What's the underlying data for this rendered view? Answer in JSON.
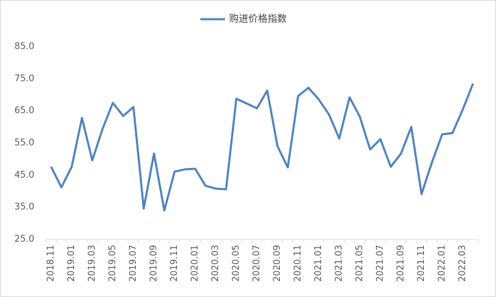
{
  "chart_data": {
    "type": "line",
    "categories": [
      "2018.11",
      null,
      "2019.01",
      null,
      "2019.03",
      null,
      "2019.05",
      null,
      "2019.07",
      null,
      "2019.09",
      null,
      "2019.11",
      null,
      "2020.01",
      null,
      "2020.03",
      null,
      "2020.05",
      null,
      "2020.07",
      null,
      "2020.09",
      null,
      "2020.11",
      null,
      "2021.01",
      null,
      "2021.03",
      null,
      "2021.05",
      null,
      "2021.07",
      null,
      "2021.09",
      null,
      "2021.11",
      null,
      "2022.01",
      null,
      "2022.03",
      null
    ],
    "series": [
      {
        "name": "购进价格指数",
        "color": "#4f81bd",
        "values": [
          47.6,
          41.2,
          47.6,
          62.8,
          49.6,
          59.4,
          67.5,
          63.4,
          66.2,
          34.6,
          51.7,
          34.0,
          46.1,
          46.8,
          47.0,
          41.7,
          40.8,
          40.6,
          68.8,
          67.3,
          65.8,
          71.3,
          54.0,
          47.4,
          69.6,
          72.2,
          68.6,
          63.9,
          56.4,
          69.2,
          63.2,
          53.0,
          56.2,
          47.6,
          51.7,
          60.0,
          39.1,
          48.9,
          57.7,
          58.1,
          65.4,
          73.5
        ]
      }
    ],
    "ylim": [
      25,
      85
    ],
    "yticks": [
      {
        "value": 25,
        "label": "25.0"
      },
      {
        "value": 35,
        "label": "35.0"
      },
      {
        "value": 45,
        "label": "45.0"
      },
      {
        "value": 55,
        "label": "55.0"
      },
      {
        "value": 65,
        "label": "65.0"
      },
      {
        "value": 75,
        "label": "75.0"
      },
      {
        "value": 85,
        "label": "85.0"
      }
    ],
    "grid": false,
    "legend": "top"
  }
}
